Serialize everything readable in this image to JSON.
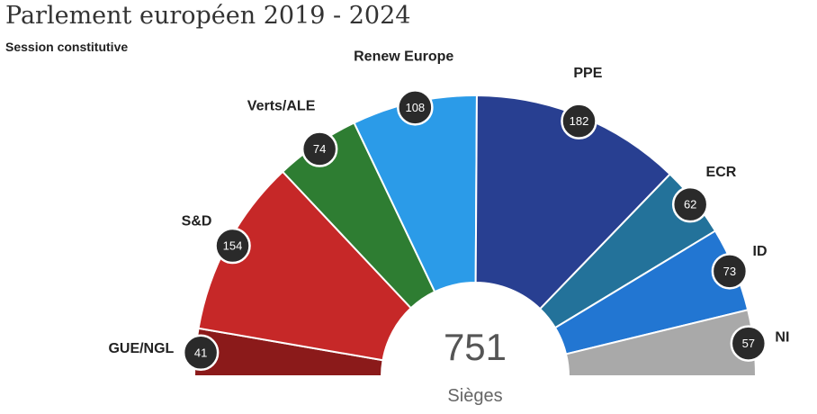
{
  "title": "Parlement européen 2019 - 2024",
  "subtitle": "Session constitutive",
  "chart_data": {
    "type": "parliament",
    "title": "Parlement européen 2019 - 2024",
    "subtitle": "Session constitutive",
    "total": "751",
    "total_label": "Sièges",
    "parties": [
      {
        "name": "GUE/NGL",
        "seats": 41,
        "color": "#8b1a1a"
      },
      {
        "name": "S&D",
        "seats": 154,
        "color": "#c62828"
      },
      {
        "name": "Verts/ALE",
        "seats": 74,
        "color": "#2e7d32"
      },
      {
        "name": "Renew Europe",
        "seats": 108,
        "color": "#2b9be8"
      },
      {
        "name": "PPE",
        "seats": 182,
        "color": "#283f91"
      },
      {
        "name": "ECR",
        "seats": 62,
        "color": "#23729a"
      },
      {
        "name": "ID",
        "seats": 73,
        "color": "#2276d2"
      },
      {
        "name": "NI",
        "seats": 57,
        "color": "#a9a9a9"
      }
    ]
  }
}
